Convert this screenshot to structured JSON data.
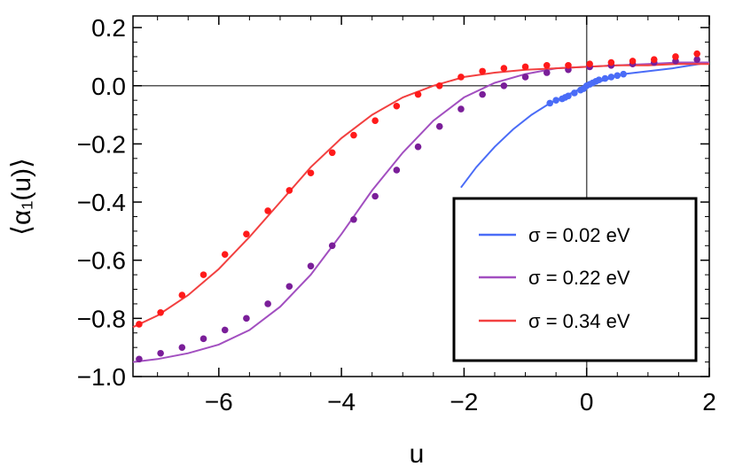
{
  "chart_data": {
    "type": "line",
    "title": "",
    "xlabel": "u",
    "ylabel": "⟨α₁(u)⟩",
    "xlim": [
      -7.4,
      2
    ],
    "ylim": [
      -1.0,
      0.24
    ],
    "x_ticks": [
      -6,
      -4,
      -2,
      0,
      2
    ],
    "y_ticks": [
      0.2,
      0.0,
      -0.2,
      -0.4,
      -0.6,
      -0.8,
      -1.0
    ],
    "x_tick_labels": [
      "−6",
      "−4",
      "−2",
      "0",
      "2"
    ],
    "y_tick_labels": [
      "0.2",
      "0.0",
      "−0.2",
      "−0.4",
      "−0.6",
      "−0.8",
      "−1.0"
    ],
    "reference_lines": {
      "x": 0,
      "y": 0
    },
    "legend_placement": "bottom-right",
    "series": [
      {
        "name": "σ = 0.02 eV",
        "color": "#4a6cf7",
        "line": {
          "x": [
            -2.05,
            -1.8,
            -1.5,
            -1.2,
            -0.9,
            -0.6,
            -0.3,
            0.0,
            0.3,
            0.6,
            1.0,
            1.4,
            2.0
          ],
          "y": [
            -0.35,
            -0.28,
            -0.21,
            -0.15,
            -0.1,
            -0.06,
            -0.03,
            0.0,
            0.02,
            0.04,
            0.05,
            0.06,
            0.08
          ]
        },
        "points": {
          "x": [
            -0.6,
            -0.5,
            -0.4,
            -0.35,
            -0.3,
            -0.2,
            -0.1,
            -0.05,
            0.0,
            0.05,
            0.1,
            0.15,
            0.2,
            0.3,
            0.4,
            0.5,
            0.6
          ],
          "y": [
            -0.06,
            -0.05,
            -0.045,
            -0.04,
            -0.035,
            -0.025,
            -0.015,
            -0.01,
            0.0,
            0.005,
            0.01,
            0.015,
            0.02,
            0.025,
            0.03,
            0.035,
            0.04
          ]
        }
      },
      {
        "name": "σ = 0.22 eV",
        "color": "#a24fc0",
        "line": {
          "x": [
            -7.4,
            -7.0,
            -6.5,
            -6.0,
            -5.5,
            -5.0,
            -4.5,
            -4.0,
            -3.5,
            -3.0,
            -2.5,
            -2.0,
            -1.5,
            -1.0,
            -0.5,
            0.0,
            0.5,
            1.0,
            1.5,
            2.0
          ],
          "y": [
            -0.95,
            -0.94,
            -0.92,
            -0.89,
            -0.84,
            -0.76,
            -0.65,
            -0.51,
            -0.36,
            -0.23,
            -0.12,
            -0.04,
            0.01,
            0.04,
            0.06,
            0.065,
            0.07,
            0.075,
            0.08,
            0.08
          ]
        },
        "point_color": "#7a1e99",
        "points": {
          "x": [
            -7.3,
            -6.95,
            -6.6,
            -6.25,
            -5.9,
            -5.55,
            -5.2,
            -4.85,
            -4.5,
            -4.15,
            -3.8,
            -3.45,
            -3.1,
            -2.75,
            -2.4,
            -2.05,
            -1.7,
            -1.35,
            -1.0,
            -0.65,
            -0.3,
            0.05,
            0.4,
            0.75,
            1.1,
            1.45,
            1.8
          ],
          "y": [
            -0.94,
            -0.92,
            -0.9,
            -0.87,
            -0.84,
            -0.8,
            -0.75,
            -0.69,
            -0.62,
            -0.55,
            -0.46,
            -0.38,
            -0.29,
            -0.21,
            -0.14,
            -0.08,
            -0.03,
            0.0,
            0.03,
            0.045,
            0.055,
            0.065,
            0.07,
            0.075,
            0.08,
            0.085,
            0.09
          ]
        }
      },
      {
        "name": "σ = 0.34 eV",
        "color": "#f24040",
        "line": {
          "x": [
            -7.4,
            -7.0,
            -6.5,
            -6.0,
            -5.5,
            -5.0,
            -4.5,
            -4.0,
            -3.5,
            -3.0,
            -2.5,
            -2.0,
            -1.5,
            -1.0,
            -0.5,
            0.0,
            0.5,
            1.0,
            1.5,
            2.0
          ],
          "y": [
            -0.83,
            -0.79,
            -0.72,
            -0.63,
            -0.52,
            -0.4,
            -0.28,
            -0.18,
            -0.1,
            -0.04,
            0.0,
            0.03,
            0.045,
            0.055,
            0.06,
            0.065,
            0.07,
            0.07,
            0.075,
            0.075
          ]
        },
        "point_color": "#ff1a1a",
        "points": {
          "x": [
            -7.3,
            -6.95,
            -6.6,
            -6.25,
            -5.9,
            -5.55,
            -5.2,
            -4.85,
            -4.5,
            -4.15,
            -3.8,
            -3.45,
            -3.1,
            -2.75,
            -2.4,
            -2.05,
            -1.7,
            -1.35,
            -1.0,
            -0.65,
            -0.3,
            0.05,
            0.4,
            0.75,
            1.1,
            1.45,
            1.8
          ],
          "y": [
            -0.82,
            -0.78,
            -0.72,
            -0.65,
            -0.58,
            -0.51,
            -0.43,
            -0.36,
            -0.3,
            -0.23,
            -0.17,
            -0.12,
            -0.07,
            -0.03,
            0.0,
            0.03,
            0.05,
            0.06,
            0.065,
            0.07,
            0.07,
            0.075,
            0.08,
            0.085,
            0.09,
            0.1,
            0.11
          ]
        }
      }
    ]
  }
}
